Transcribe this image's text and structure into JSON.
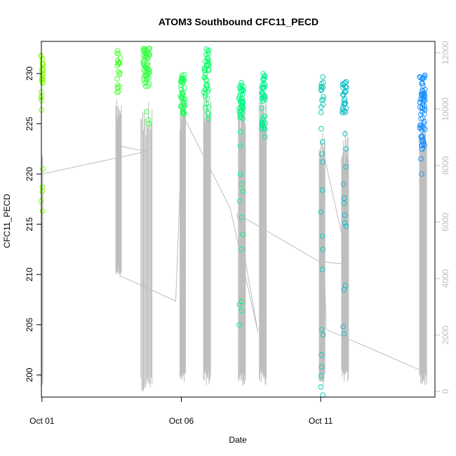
{
  "chart_data": {
    "type": "scatter",
    "title": "ATOM3 Southbound CFC11_PECD",
    "xlabel": "Date",
    "ylabel": "CFC11_PECD",
    "x_ticks": [
      {
        "day": 1,
        "label": "Oct 01"
      },
      {
        "day": 6,
        "label": "Oct 06"
      },
      {
        "day": 11,
        "label": "Oct 11"
      }
    ],
    "xlim": [
      0.98,
      15.1
    ],
    "ylim": [
      197.8,
      233.2
    ],
    "y_ticks": [
      200,
      205,
      210,
      215,
      220,
      225,
      230
    ],
    "y2_label": "",
    "y2lim": [
      -200,
      12400
    ],
    "y2_ticks": [
      0,
      2000,
      4000,
      6000,
      8000,
      10000,
      12000
    ],
    "grid": false,
    "legend": "none",
    "point_style": "open circle, colored by time (green to blue)",
    "colors": {
      "start": "#7fff00",
      "mid": "#00ff7f",
      "end": "#1e90ff",
      "altitude_line": "#bebebe"
    },
    "altitude_series": [
      {
        "day": 1.0,
        "value": 7700
      },
      {
        "day": 4.75,
        "value": 8500
      },
      {
        "day": 3.75,
        "value": 8700
      },
      {
        "day": 3.8,
        "value": 4100
      },
      {
        "day": 5.8,
        "value": 3200
      },
      {
        "day": 6.05,
        "value": 9800
      },
      {
        "day": 7.75,
        "value": 6500
      },
      {
        "day": 8.75,
        "value": 2100
      },
      {
        "day": 8.0,
        "value": 6300
      },
      {
        "day": 10.95,
        "value": 4600
      },
      {
        "day": 12.0,
        "value": 4500
      },
      {
        "day": 11.0,
        "value": 8900
      },
      {
        "day": 11.2,
        "value": 2200
      },
      {
        "day": 14.7,
        "value": 700
      }
    ],
    "altitude_clusters": [
      {
        "day_start": 0.98,
        "day_end": 1.03,
        "low": 150,
        "high": 8500
      },
      {
        "day_start": 3.65,
        "day_end": 3.85,
        "low": 4100,
        "high": 10500
      },
      {
        "day_start": 4.55,
        "day_end": 4.95,
        "low": 0,
        "high": 10300
      },
      {
        "day_start": 5.95,
        "day_end": 6.15,
        "low": 200,
        "high": 10700
      },
      {
        "day_start": 6.8,
        "day_end": 7.05,
        "low": 200,
        "high": 10800
      },
      {
        "day_start": 8.05,
        "day_end": 8.3,
        "low": 200,
        "high": 10600
      },
      {
        "day_start": 8.8,
        "day_end": 9.05,
        "low": 200,
        "high": 10600
      },
      {
        "day_start": 10.95,
        "day_end": 11.15,
        "low": 200,
        "high": 9200
      },
      {
        "day_start": 11.75,
        "day_end": 12.0,
        "low": 300,
        "high": 9300
      },
      {
        "day_start": 14.55,
        "day_end": 14.8,
        "low": 200,
        "high": 9600
      }
    ],
    "clusters": [
      {
        "day_center": 1.0,
        "day_spread": 0.04,
        "n_top": 22,
        "top_min": 226.3,
        "top_max": 231.8,
        "low_values": [
          220.5,
          218.7,
          218.3,
          217.3,
          216.3
        ]
      },
      {
        "day_center": 3.75,
        "day_spread": 0.06,
        "n_top": 20,
        "top_min": 227.9,
        "top_max": 232.3,
        "low_values": []
      },
      {
        "day_center": 4.75,
        "day_spread": 0.12,
        "n_top": 55,
        "top_min": 228.6,
        "top_max": 232.6,
        "low_values": [
          226.2,
          225.4,
          225.0
        ]
      },
      {
        "day_center": 6.05,
        "day_spread": 0.08,
        "n_top": 40,
        "top_min": 225.9,
        "top_max": 229.9,
        "low_values": []
      },
      {
        "day_center": 6.9,
        "day_spread": 0.09,
        "n_top": 45,
        "top_min": 225.3,
        "top_max": 232.5,
        "low_values": []
      },
      {
        "day_center": 8.15,
        "day_spread": 0.08,
        "n_top": 38,
        "top_min": 225.4,
        "top_max": 229.2,
        "low_values": [
          224.2,
          222.8,
          220.0,
          219.0,
          218.3,
          217.3,
          215.7,
          214.0,
          212.5,
          207.3,
          207.0,
          206.4,
          205.0
        ]
      },
      {
        "day_center": 8.95,
        "day_spread": 0.07,
        "n_top": 40,
        "top_min": 224.3,
        "top_max": 230.2,
        "low_values": [
          223.7
        ]
      },
      {
        "day_center": 11.05,
        "day_spread": 0.05,
        "n_top": 14,
        "top_min": 225.8,
        "top_max": 229.8,
        "low_values": [
          224.5,
          223.2,
          222.0,
          221.2,
          218.4,
          216.2,
          213.8,
          212.5,
          210.5,
          204.5,
          204.0,
          202.0,
          200.8,
          199.9,
          198.8,
          198.0
        ]
      },
      {
        "day_center": 11.85,
        "day_spread": 0.07,
        "n_top": 26,
        "top_min": 225.8,
        "top_max": 229.3,
        "low_values": [
          224.0,
          222.5,
          220.7,
          219.0,
          217.6,
          217.1,
          215.9,
          215.1,
          214.8,
          208.9,
          208.5,
          204.8,
          204.1
        ]
      },
      {
        "day_center": 14.65,
        "day_spread": 0.1,
        "n_top": 70,
        "top_min": 222.4,
        "top_max": 230.1,
        "low_values": [
          221.5,
          220.0
        ]
      }
    ]
  }
}
